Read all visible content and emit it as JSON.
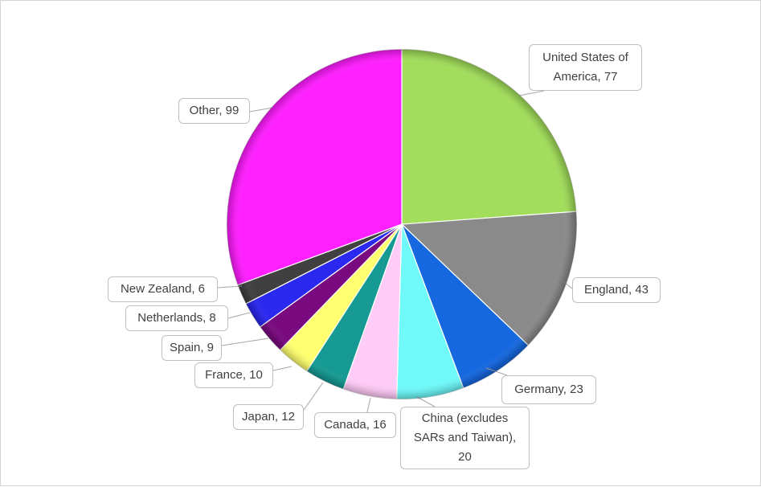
{
  "chart_data": {
    "type": "pie",
    "title": "",
    "labels": [
      "United States of America",
      "England",
      "Germany",
      "China (excludes SARs and Taiwan)",
      "Canada",
      "Japan",
      "France",
      "Spain",
      "Netherlands",
      "New Zealand",
      "Other"
    ],
    "values": [
      77,
      43,
      23,
      20,
      16,
      12,
      10,
      9,
      8,
      6,
      99
    ],
    "colors": [
      "#a2dd5b",
      "#8a8a8a",
      "#1668e0",
      "#6ff9f9",
      "#ffcbf7",
      "#169a93",
      "#ffff70",
      "#7a0a7f",
      "#2b28f0",
      "#404040",
      "#ff1fff"
    ],
    "data_labels": [
      "United States of America, 77",
      "England, 43",
      "Germany, 23",
      "China (excludes SARs and Taiwan), 20",
      "Canada, 16",
      "Japan, 12",
      "France, 10",
      "Spain, 9",
      "Netherlands, 8",
      "New Zealand, 6",
      "Other, 99"
    ],
    "start_angle": "12 o'clock",
    "direction": "clockwise",
    "legend": "none",
    "style": "3D bevel"
  }
}
